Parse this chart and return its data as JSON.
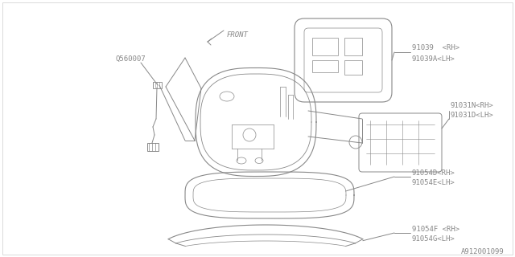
{
  "bg_color": "#ffffff",
  "line_color": "#888888",
  "text_color": "#888888",
  "diagram_id": "A912001099",
  "label_texts": {
    "Q560007": "Q560007",
    "FRONT": "FRONT",
    "91039_RH": "91039  <RH>",
    "91039A_LH": "91039A<LH>",
    "91031N_RH": "91031N<RH>",
    "91031D_LH": "91031D<LH>",
    "91054D_RH": "91054D<RH>",
    "91054E_LH": "91054E<LH>",
    "91054F_RH": "91054F <RH>",
    "91054G_LH": "91054G<LH>"
  },
  "font_size": 6.5,
  "diagram_font_size": 6.5
}
